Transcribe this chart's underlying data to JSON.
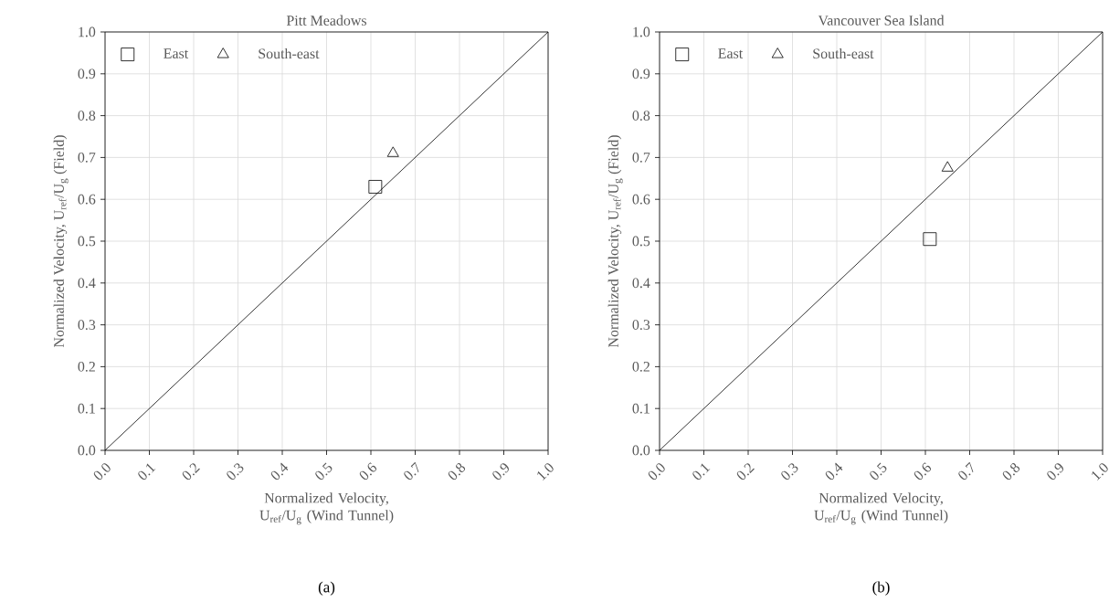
{
  "chart_data": [
    {
      "type": "scatter",
      "title": "Pitt Meadows",
      "xlabel": "Normalized Velocity, U$_{ref}$/U$_{g}$ (Wind Tunnel)",
      "ylabel": "Normalized Velocity, U$_{ref}$/U$_{g}$ (Field)",
      "annotations": [
        "(a)"
      ],
      "xlim": [
        0,
        1
      ],
      "ylim": [
        0,
        1
      ],
      "xticks": [
        {
          "value": 0,
          "label": "0.0"
        },
        {
          "value": 0.1,
          "label": "0.1"
        },
        {
          "value": 0.2,
          "label": "0.2"
        },
        {
          "value": 0.3,
          "label": "0.3"
        },
        {
          "value": 0.4,
          "label": "0.4"
        },
        {
          "value": 0.5,
          "label": "0.5"
        },
        {
          "value": 0.6,
          "label": "0.6"
        },
        {
          "value": 0.7,
          "label": "0.7"
        },
        {
          "value": 0.8,
          "label": "0.8"
        },
        {
          "value": 0.9,
          "label": "0.9"
        },
        {
          "value": 1,
          "label": "1.0"
        }
      ],
      "yticks": [
        {
          "value": 0,
          "label": "0.0"
        },
        {
          "value": 0.1,
          "label": "0.1"
        },
        {
          "value": 0.2,
          "label": "0.2"
        },
        {
          "value": 0.3,
          "label": "0.3"
        },
        {
          "value": 0.4,
          "label": "0.4"
        },
        {
          "value": 0.5,
          "label": "0.5"
        },
        {
          "value": 0.6,
          "label": "0.6"
        },
        {
          "value": 0.7,
          "label": "0.7"
        },
        {
          "value": 0.8,
          "label": "0.8"
        },
        {
          "value": 0.9,
          "label": "0.9"
        },
        {
          "value": 1,
          "label": "1.0"
        }
      ],
      "grid": true,
      "legend": "top left",
      "series": [
        {
          "name": "East",
          "color": "#000000",
          "marker": "square",
          "x": [
            0.61
          ],
          "values": [
            0.63
          ]
        },
        {
          "name": "South-east",
          "color": "#000000",
          "marker": "triangle",
          "x": [
            0.65
          ],
          "values": [
            0.71
          ]
        },
        {
          "type": "line",
          "color": "#000000",
          "marker": "none",
          "x": [
            0,
            1
          ],
          "values": [
            0,
            1
          ]
        }
      ]
    },
    {
      "type": "scatter",
      "title": "Vancouver Sea Island",
      "xlabel": "Normalized Velocity, U$_{ref}$/U$_{g}$ (Wind Tunnel)",
      "ylabel": "Normalized Velocity, U$_{ref}$/U$_{g}$ (Field)",
      "annotations": [
        "(b)"
      ],
      "xlim": [
        0,
        1
      ],
      "ylim": [
        0,
        1
      ],
      "xticks": [
        {
          "value": 0,
          "label": "0.0"
        },
        {
          "value": 0.1,
          "label": "0.1"
        },
        {
          "value": 0.2,
          "label": "0.2"
        },
        {
          "value": 0.3,
          "label": "0.3"
        },
        {
          "value": 0.4,
          "label": "0.4"
        },
        {
          "value": 0.5,
          "label": "0.5"
        },
        {
          "value": 0.6,
          "label": "0.6"
        },
        {
          "value": 0.7,
          "label": "0.7"
        },
        {
          "value": 0.8,
          "label": "0.8"
        },
        {
          "value": 0.9,
          "label": "0.9"
        },
        {
          "value": 1,
          "label": "1.0"
        }
      ],
      "yticks": [
        {
          "value": 0,
          "label": "0.0"
        },
        {
          "value": 0.1,
          "label": "0.1"
        },
        {
          "value": 0.2,
          "label": "0.2"
        },
        {
          "value": 0.3,
          "label": "0.3"
        },
        {
          "value": 0.4,
          "label": "0.4"
        },
        {
          "value": 0.5,
          "label": "0.5"
        },
        {
          "value": 0.6,
          "label": "0.6"
        },
        {
          "value": 0.7,
          "label": "0.7"
        },
        {
          "value": 0.8,
          "label": "0.8"
        },
        {
          "value": 0.9,
          "label": "0.9"
        },
        {
          "value": 1,
          "label": "1.0"
        }
      ],
      "grid": true,
      "legend": "top left",
      "series": [
        {
          "name": "East",
          "color": "#000000",
          "marker": "square",
          "x": [
            0.61
          ],
          "values": [
            0.505
          ]
        },
        {
          "name": "South-east",
          "color": "#000000",
          "marker": "triangle",
          "x": [
            0.65
          ],
          "values": [
            0.675
          ]
        },
        {
          "type": "line",
          "color": "#000000",
          "marker": "none",
          "x": [
            0,
            1
          ],
          "values": [
            0,
            1
          ]
        }
      ]
    }
  ]
}
